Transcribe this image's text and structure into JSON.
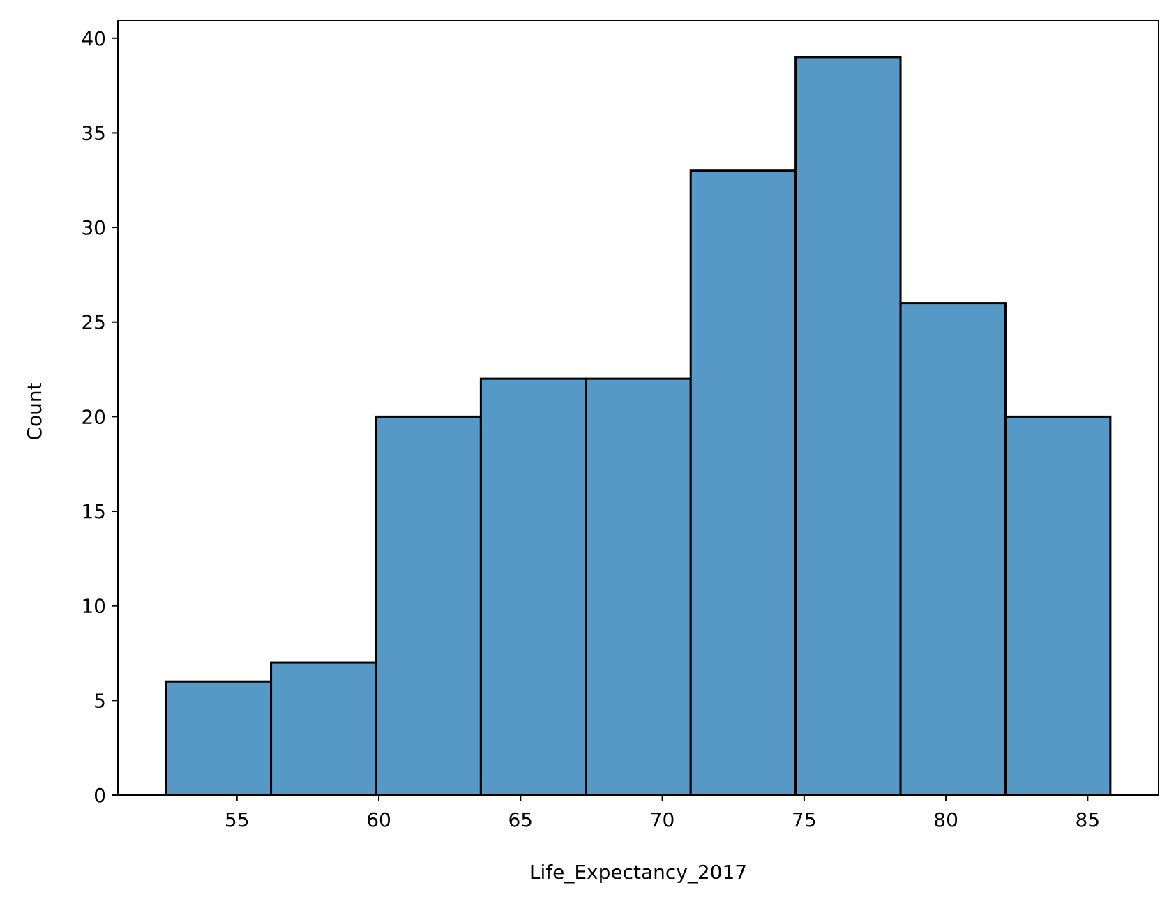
{
  "chart_data": {
    "type": "bar",
    "histogram": true,
    "title": "",
    "xlabel": "Life_Expectancy_2017",
    "ylabel": "Count",
    "bins": [
      {
        "start": 52.5,
        "end": 56.2,
        "count": 6
      },
      {
        "start": 56.2,
        "end": 59.9,
        "count": 7
      },
      {
        "start": 59.9,
        "end": 63.6,
        "count": 20
      },
      {
        "start": 63.6,
        "end": 67.3,
        "count": 22
      },
      {
        "start": 67.3,
        "end": 71.0,
        "count": 22
      },
      {
        "start": 71.0,
        "end": 74.7,
        "count": 33
      },
      {
        "start": 74.7,
        "end": 78.4,
        "count": 39
      },
      {
        "start": 78.4,
        "end": 82.1,
        "count": 26
      },
      {
        "start": 82.1,
        "end": 85.8,
        "count": 20
      }
    ],
    "xlim": [
      50.8,
      87.5
    ],
    "ylim": [
      0,
      40.95
    ],
    "xticks": [
      55,
      60,
      65,
      70,
      75,
      80,
      85
    ],
    "yticks": [
      0,
      5,
      10,
      15,
      20,
      25,
      30,
      35,
      40
    ],
    "bar_color": "#5799c6",
    "edge_color": "#000000",
    "grid": false,
    "legend": false
  }
}
